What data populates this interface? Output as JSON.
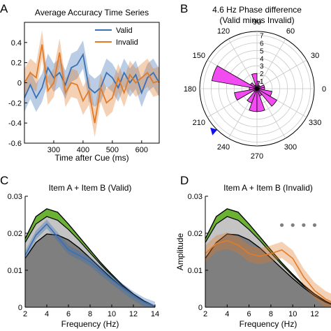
{
  "panel_labels": [
    "A",
    "B",
    "C",
    "D"
  ],
  "chart_data": [
    {
      "type": "line",
      "title": "Average Accuracy Time Series",
      "xlabel": "Time after Cue (ms)",
      "ylabel": "",
      "xlim": [
        200,
        660
      ],
      "ylim": [
        -0.6,
        0.6
      ],
      "xticks": [
        300,
        400,
        500,
        600
      ],
      "yticks": [
        -0.6,
        -0.4,
        -0.2,
        0,
        0.2,
        0.4
      ],
      "legend": "top-right",
      "colors": {
        "Valid": "#3a70b4",
        "Invalid": "#e07b2a"
      },
      "x": [
        200,
        220,
        240,
        260,
        280,
        300,
        320,
        340,
        360,
        380,
        400,
        420,
        440,
        460,
        480,
        500,
        520,
        540,
        560,
        580,
        600,
        620,
        640,
        660
      ],
      "series": [
        {
          "name": "Valid",
          "values": [
            -0.15,
            -0.02,
            -0.15,
            -0.05,
            0.15,
            0.05,
            0.1,
            -0.02,
            0.15,
            0.18,
            0.28,
            -0.05,
            -0.1,
            -0.05,
            0.1,
            0.05,
            -0.05,
            0.1,
            0.0,
            0.08,
            -0.1,
            0.05,
            0.1,
            0.0
          ],
          "ci": 0.14
        },
        {
          "name": "Invalid",
          "values": [
            0.0,
            0.1,
            0.05,
            0.38,
            -0.08,
            0.0,
            0.3,
            -0.1,
            0.0,
            -0.02,
            -0.18,
            -0.08,
            -0.4,
            -0.05,
            -0.2,
            -0.15,
            0.05,
            -0.1,
            0.08,
            0.0,
            0.05,
            0.1,
            0.0,
            0.02
          ],
          "ci": 0.14
        }
      ]
    },
    {
      "type": "polar-histogram",
      "title": "4.6 Hz Phase difference",
      "subtitle": "(Valid minus Invalid)",
      "angle_ticks": [
        0,
        30,
        60,
        90,
        120,
        150,
        180,
        210,
        240,
        270,
        300,
        330
      ],
      "radial_ticks": [
        1,
        2,
        3,
        4,
        5,
        6,
        7
      ],
      "rmax": 7.5,
      "bin_width_deg": 20,
      "bars_color": "#f14bf1",
      "bins": [
        {
          "center": 0,
          "value": 1
        },
        {
          "center": 20,
          "value": 1
        },
        {
          "center": 40,
          "value": 0.5
        },
        {
          "center": 60,
          "value": 0.5
        },
        {
          "center": 80,
          "value": 1
        },
        {
          "center": 100,
          "value": 2
        },
        {
          "center": 120,
          "value": 0.5
        },
        {
          "center": 140,
          "value": 1
        },
        {
          "center": 160,
          "value": 6
        },
        {
          "center": 180,
          "value": 1
        },
        {
          "center": 200,
          "value": 3
        },
        {
          "center": 220,
          "value": 0.5
        },
        {
          "center": 240,
          "value": 2
        },
        {
          "center": 260,
          "value": 3
        },
        {
          "center": 280,
          "value": 3
        },
        {
          "center": 300,
          "value": 1
        },
        {
          "center": 320,
          "value": 3
        },
        {
          "center": 340,
          "value": 2
        }
      ],
      "mean_marker_angle": 225,
      "marker_color": "#1010ee"
    },
    {
      "type": "area",
      "title": "Item A + Item B (Valid)",
      "xlabel": "Frequency (Hz)",
      "ylabel": "",
      "xlim": [
        2,
        14
      ],
      "ylim": [
        0,
        0.03
      ],
      "xticks": [
        2,
        4,
        6,
        8,
        10,
        12,
        14
      ],
      "yticks": [
        0,
        0.01,
        0.02,
        0.03
      ],
      "x": [
        2,
        3,
        4,
        5,
        6,
        7,
        8,
        9,
        10,
        11,
        12,
        13,
        14
      ],
      "bands": {
        "gray_upper": [
          0.0175,
          0.0225,
          0.0245,
          0.0235,
          0.021,
          0.018,
          0.0147,
          0.0115,
          0.0085,
          0.0057,
          0.0035,
          0.0016,
          0.0003
        ],
        "green_upper": [
          0.0185,
          0.0245,
          0.0266,
          0.0257,
          0.0225,
          0.019,
          0.0155,
          0.012,
          0.0089,
          0.006,
          0.0036,
          0.0017,
          0.0003
        ],
        "black_line": [
          0.0132,
          0.0175,
          0.0198,
          0.0195,
          0.0182,
          0.016,
          0.0133,
          0.0105,
          0.0078,
          0.0053,
          0.0031,
          0.0014,
          0.0002
        ]
      },
      "series": [
        {
          "values": [
            0.014,
            0.0195,
            0.0225,
            0.019,
            0.0155,
            0.014,
            0.0123,
            0.0098,
            0.0075,
            0.0052,
            0.0031,
            0.0014,
            0.0003
          ],
          "color": "#3a70b4",
          "ci": 0.0012
        }
      ],
      "dots": []
    },
    {
      "type": "area",
      "title": "Item A + Item B (Invalid)",
      "xlabel": "Frequency (Hz)",
      "ylabel": "Amplitude",
      "xlim": [
        2,
        13.5
      ],
      "ylim": [
        0,
        0.03
      ],
      "xticks": [
        2,
        4,
        6,
        8,
        10,
        12
      ],
      "yticks": [
        0,
        0.01,
        0.02,
        0.03
      ],
      "x": [
        2,
        3,
        4,
        5,
        6,
        7,
        8,
        9,
        10,
        11,
        12,
        13,
        14
      ],
      "bands": {
        "gray_upper": [
          0.0175,
          0.0225,
          0.0245,
          0.0235,
          0.021,
          0.018,
          0.0147,
          0.0115,
          0.0085,
          0.0057,
          0.0035,
          0.0016,
          0.0003
        ],
        "green_upper": [
          0.0185,
          0.0245,
          0.0266,
          0.0257,
          0.0225,
          0.019,
          0.0155,
          0.012,
          0.0089,
          0.006,
          0.0036,
          0.0017,
          0.0003
        ],
        "black_line": [
          0.0132,
          0.0175,
          0.0198,
          0.0195,
          0.0182,
          0.016,
          0.0133,
          0.0105,
          0.0078,
          0.0053,
          0.0031,
          0.0014,
          0.0002
        ]
      },
      "series": [
        {
          "values": [
            0.0145,
            0.0172,
            0.018,
            0.0168,
            0.0145,
            0.0138,
            0.0145,
            0.0155,
            0.0132,
            0.0082,
            0.0045,
            0.0022,
            0.0008
          ],
          "color": "#e07b2a",
          "ci": 0.0022
        }
      ],
      "dots": [
        {
          "x": 9.0,
          "y": 0.0222
        },
        {
          "x": 10.0,
          "y": 0.0222
        },
        {
          "x": 11.0,
          "y": 0.0222
        },
        {
          "x": 12.0,
          "y": 0.0222
        }
      ],
      "dots_color": "#808080"
    }
  ]
}
